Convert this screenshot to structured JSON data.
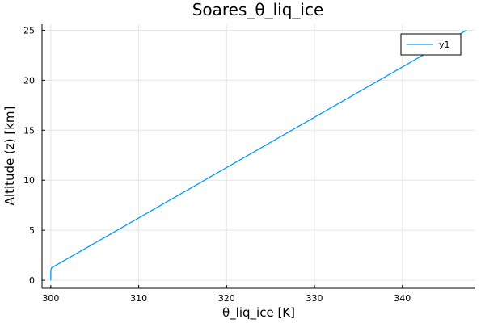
{
  "chart_data": {
    "type": "line",
    "title": "Soares_θ_liq_ice",
    "xlabel": "θ_liq_ice [K]",
    "ylabel": "Altitude (z) [km]",
    "xlim": [
      299,
      348.3
    ],
    "ylim": [
      -0.8,
      25.6
    ],
    "xticks": [
      300,
      310,
      320,
      330,
      340
    ],
    "yticks": [
      0,
      5,
      10,
      15,
      20,
      25
    ],
    "grid": true,
    "legend_position": "top-right",
    "series": [
      {
        "name": "y1",
        "color": "#009AFA",
        "x": [
          300.0,
          300.0,
          300.1,
          300.3,
          347.3
        ],
        "y": [
          0.0,
          1.0,
          1.25,
          1.35,
          25.0
        ]
      }
    ]
  }
}
